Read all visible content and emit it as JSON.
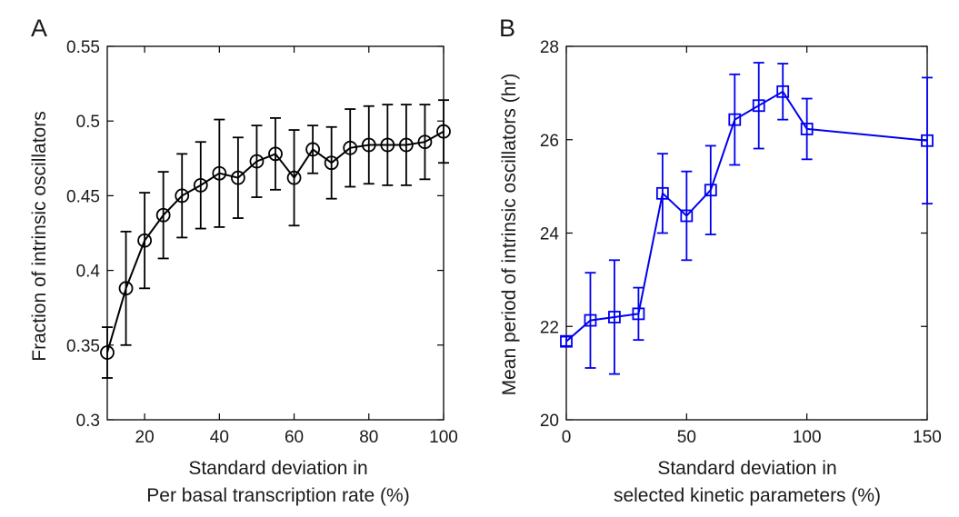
{
  "chart_data": [
    {
      "panel": "A",
      "type": "line",
      "color": "#000000",
      "marker": "circle",
      "xlabel": [
        "Standard deviation in",
        "Per basal transcription rate (%)"
      ],
      "ylabel": "Fraction of intrinsic oscillators",
      "xlim": [
        10,
        100
      ],
      "ylim": [
        0.3,
        0.55
      ],
      "xticks": [
        20,
        40,
        60,
        80,
        100
      ],
      "yticks": [
        0.3,
        0.35,
        0.4,
        0.45,
        0.5,
        0.55
      ],
      "x": [
        10,
        15,
        20,
        25,
        30,
        35,
        40,
        45,
        50,
        55,
        60,
        65,
        70,
        75,
        80,
        85,
        90,
        95,
        100
      ],
      "y": [
        0.345,
        0.388,
        0.42,
        0.437,
        0.45,
        0.457,
        0.465,
        0.462,
        0.473,
        0.478,
        0.462,
        0.481,
        0.472,
        0.482,
        0.484,
        0.484,
        0.484,
        0.486,
        0.493
      ],
      "err": [
        0.017,
        0.038,
        0.032,
        0.029,
        0.028,
        0.029,
        0.036,
        0.027,
        0.024,
        0.024,
        0.032,
        0.016,
        0.024,
        0.026,
        0.026,
        0.027,
        0.027,
        0.025,
        0.021
      ]
    },
    {
      "panel": "B",
      "type": "line",
      "color": "#0000ee",
      "marker": "square",
      "xlabel": [
        "Standard deviation in",
        "selected kinetic parameters (%)"
      ],
      "ylabel": "Mean period of intrinsic oscillators (hr)",
      "xlim": [
        0,
        150
      ],
      "ylim": [
        20,
        28
      ],
      "xticks": [
        0,
        50,
        100,
        150
      ],
      "yticks": [
        20,
        22,
        24,
        26,
        28
      ],
      "x": [
        0,
        10,
        20,
        30,
        40,
        50,
        60,
        70,
        80,
        90,
        100,
        150
      ],
      "y": [
        21.68,
        22.13,
        22.2,
        22.27,
        24.85,
        24.37,
        24.92,
        26.43,
        26.73,
        27.03,
        26.23,
        25.98
      ],
      "err": [
        0.1,
        1.02,
        1.22,
        0.56,
        0.85,
        0.95,
        0.95,
        0.97,
        0.92,
        0.6,
        0.65,
        1.35
      ]
    }
  ]
}
